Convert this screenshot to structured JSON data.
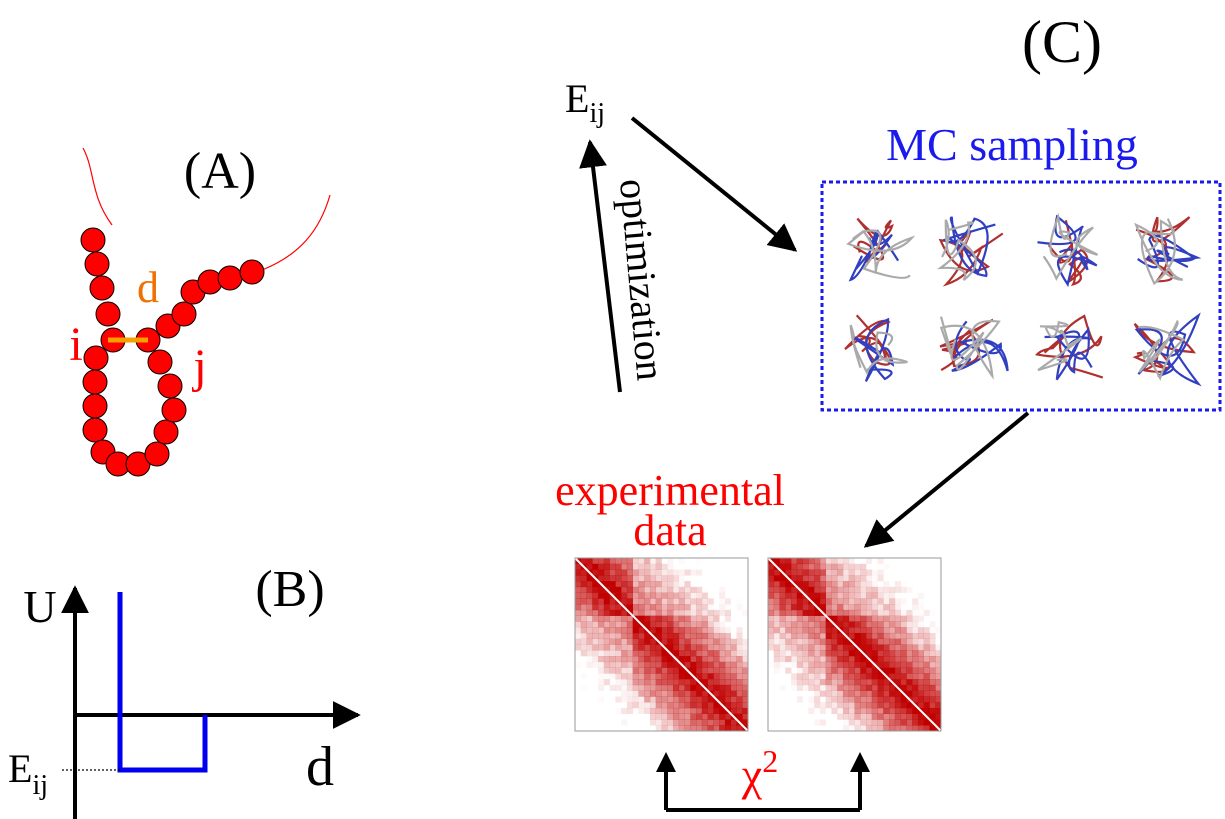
{
  "panels": {
    "a": {
      "label": "(A)",
      "distance": "d",
      "bead_i": "i",
      "bead_j": "j"
    },
    "b": {
      "label": "(B)",
      "y_axis": "U",
      "x_axis": "d",
      "energy": {
        "base": "E",
        "sub": "ij"
      }
    },
    "c": {
      "label": "(C)",
      "energy": {
        "base": "E",
        "sub": "ij"
      },
      "sampling": "MC sampling",
      "optimization": "optimization",
      "experimental": [
        "experimental",
        "data"
      ],
      "chi": {
        "base": "χ",
        "sup": "2"
      }
    }
  }
}
